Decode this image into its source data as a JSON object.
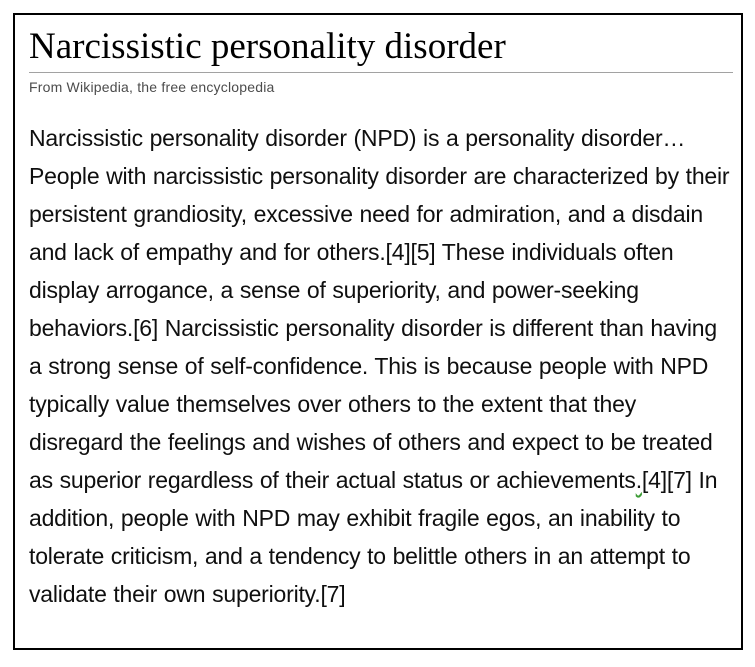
{
  "colors": {
    "page_background": "#ffffff",
    "frame_border": "#000000",
    "title_text": "#000000",
    "divider_rule": "#a2a2a2",
    "subtitle_text": "#4c4c4c",
    "body_text": "#0f0f0f",
    "grammar_squiggle": "#3c9b35"
  },
  "header": {
    "title": "Narcissistic personality disorder",
    "subtitle": "From Wikipedia, the free encyclopedia"
  },
  "article": {
    "text_before_grammar_mark": "Narcissistic personality disorder (NPD) is a personality disorder…People with narcissistic personality disorder are characterized by their persistent grandiosity, excessive need for admiration, and a disdain and lack of empathy and for others.[4][5] These individuals often display arrogance, a sense of superiority, and power-seeking behaviors.[6] Narcissistic personality disorder is different than having a strong sense of self-confidence. This is because people with NPD typically value themselves over others to the extent that they disregard the feelings and wishes of others and expect to be treated as superior regardless of their actual status or achievements",
    "grammar_marked_text": ".",
    "text_after_grammar_mark": "[4][7] In addition, people with NPD may exhibit fragile egos, an inability to tolerate criticism, and a tendency to belittle others in an attempt to validate their own superiority.[7]",
    "citations_visible": [
      "[4]",
      "[5]",
      "[6]",
      "[4]",
      "[7]",
      "[7]"
    ]
  }
}
